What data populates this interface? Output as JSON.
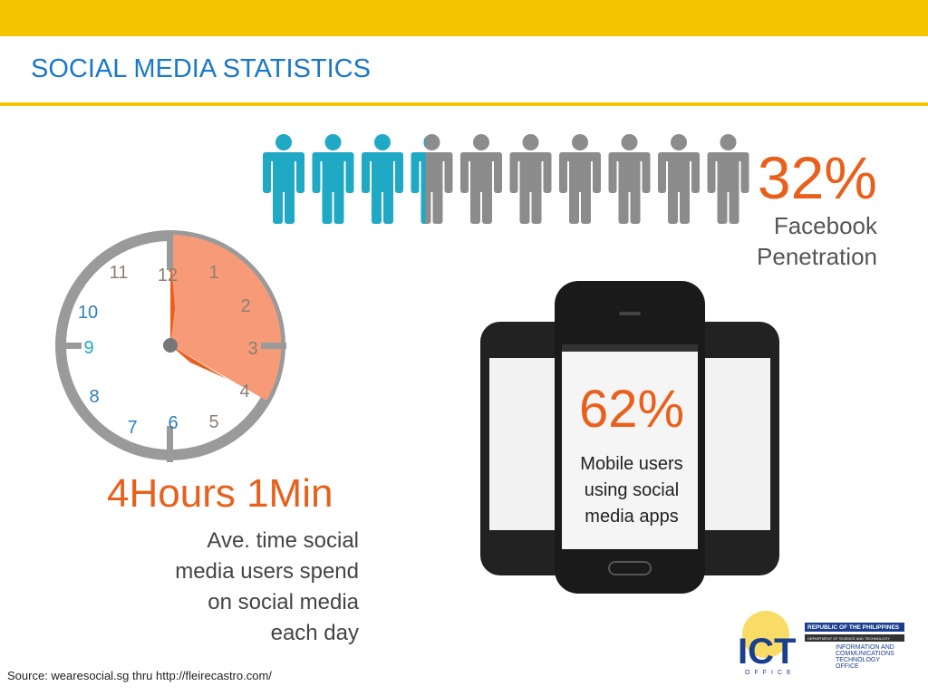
{
  "header": {
    "title": "SOCIAL MEDIA STATISTICS"
  },
  "facebook": {
    "value": "32%",
    "label": [
      "Facebook",
      "Penetration"
    ]
  },
  "time": {
    "value": "4Hours 1Min",
    "label": [
      "Ave. time social",
      "media users spend",
      "on social media",
      "each day"
    ]
  },
  "mobile": {
    "value": "62%",
    "label": [
      "Mobile users",
      "using social",
      "media apps"
    ]
  },
  "clock": {
    "numbers": [
      "12",
      "1",
      "2",
      "3",
      "4",
      "5",
      "6",
      "7",
      "8",
      "9",
      "10",
      "11"
    ]
  },
  "source": "Source: wearesocial.sg thru http://fleirecastro.com/",
  "logo": {
    "name": "ICT",
    "sub": "OFFICE",
    "lines": [
      "REPUBLIC OF THE PHILIPPINES",
      "DEPARTMENT OF SCIENCE AND TECHNOLOGY",
      "INFORMATION AND",
      "COMMUNICATIONS",
      "TECHNOLOGY",
      "OFFICE"
    ]
  }
}
